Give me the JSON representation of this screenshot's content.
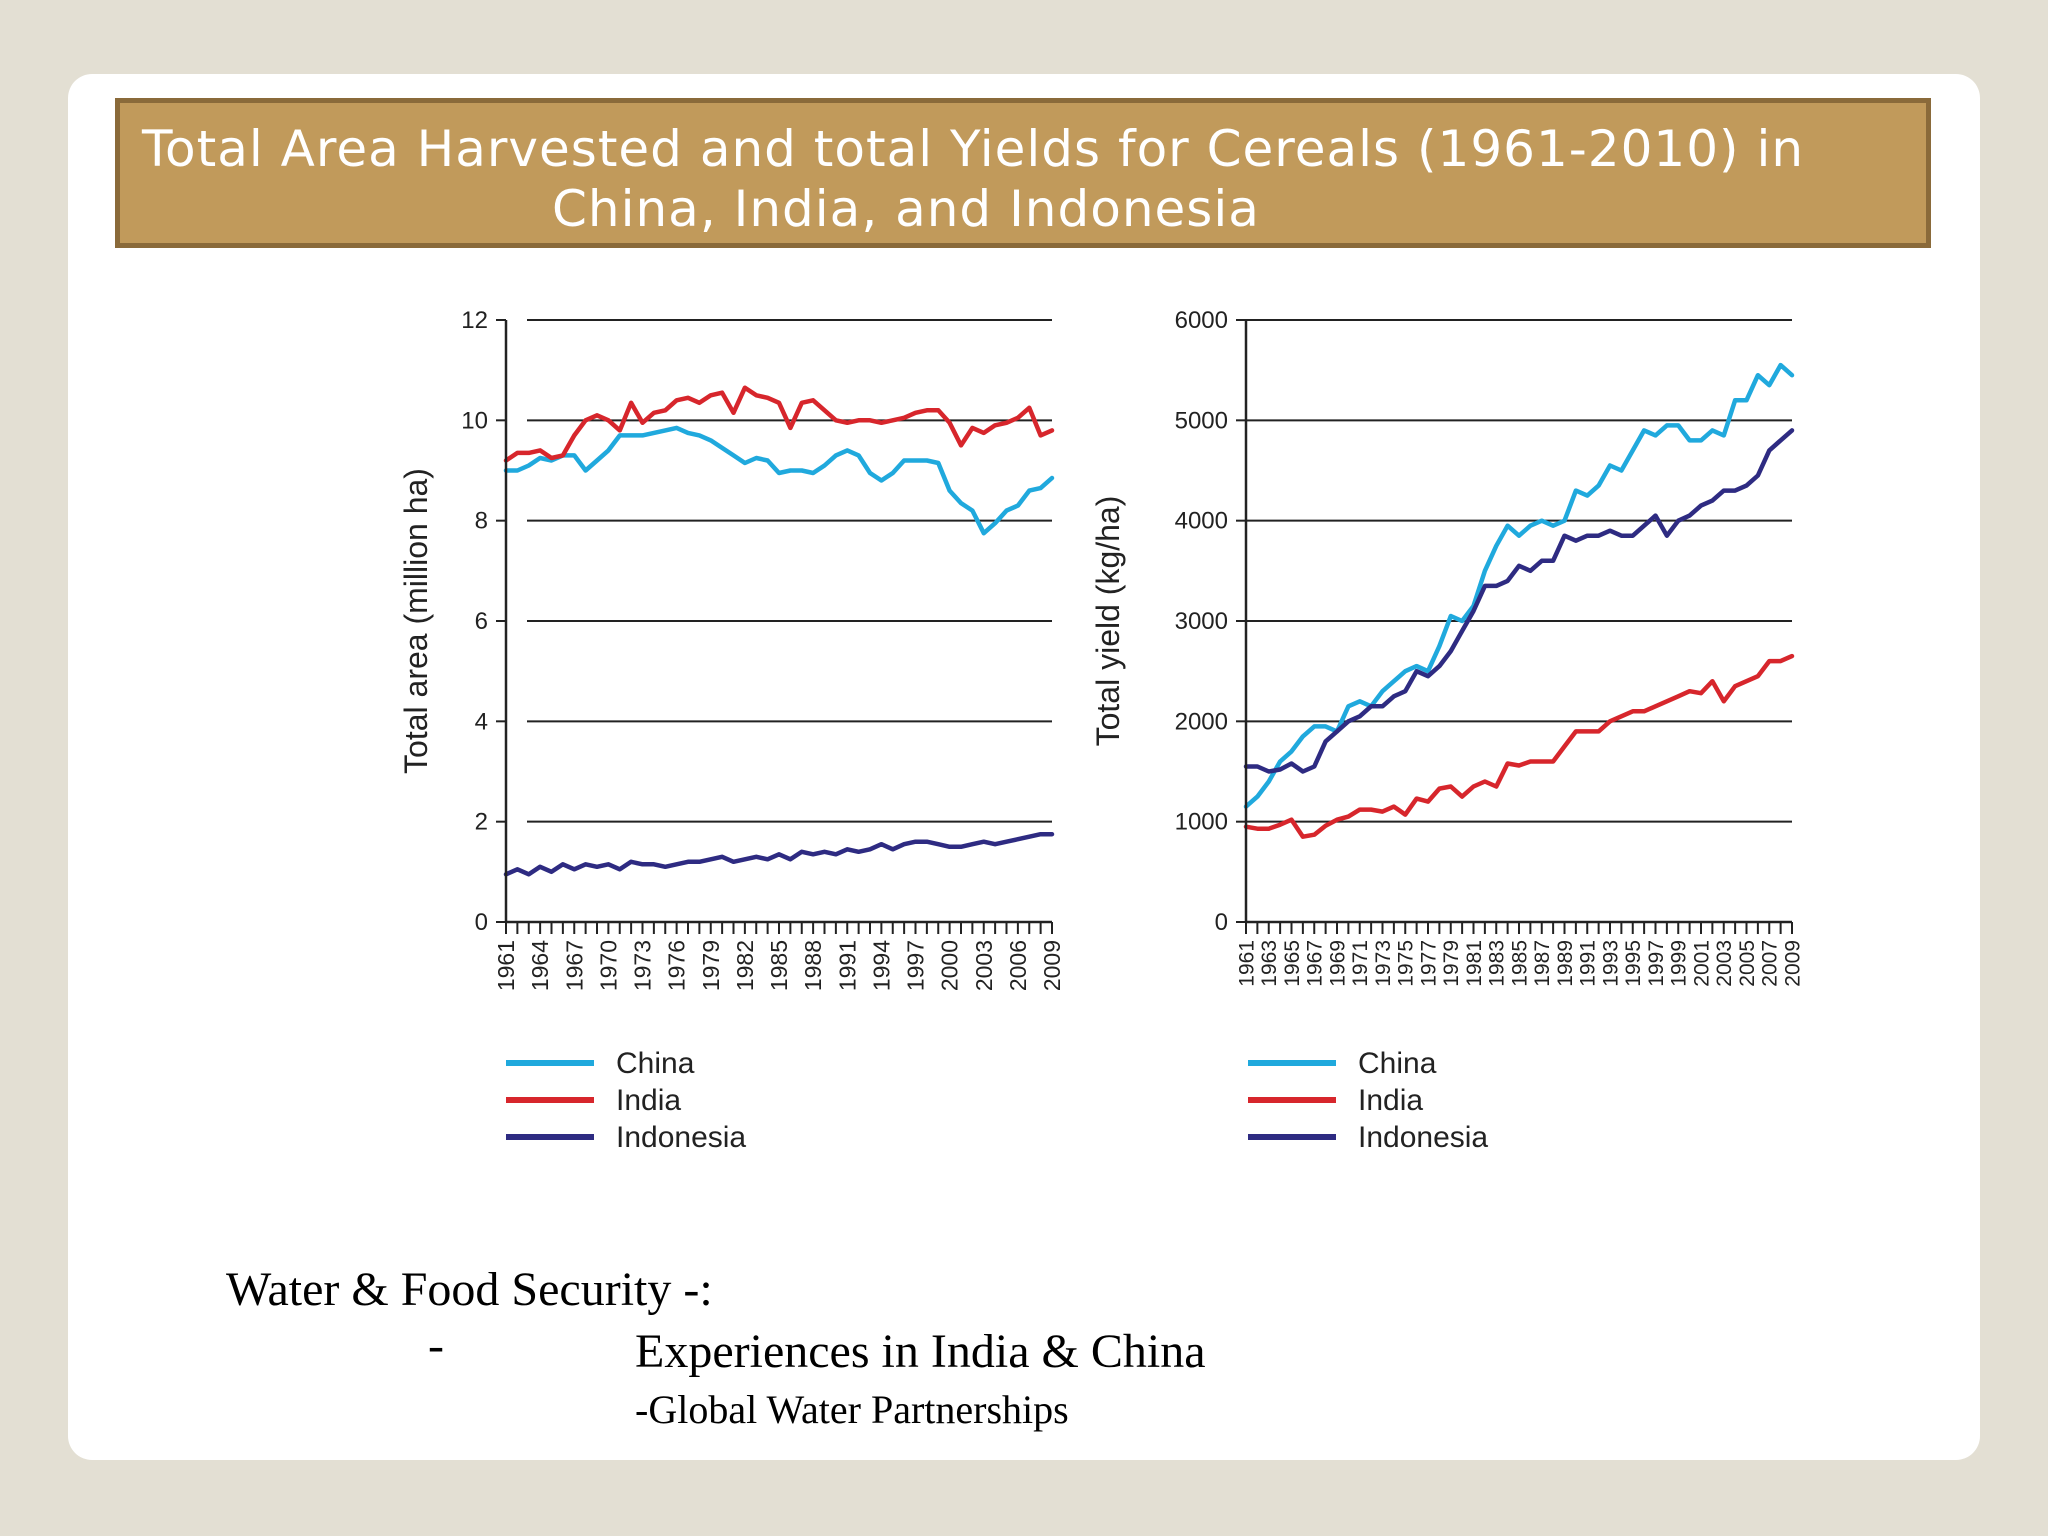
{
  "slide": {
    "title_line1": "Total Area Harvested and total Yields for Cereals (1961-2010) in",
    "title_line2": "China, India, and Indonesia",
    "caption_line1": "Water & Food Security -:",
    "caption_dash": "-",
    "caption_line2": "Experiences in India & China",
    "caption_line3": "-Global Water Partnerships"
  },
  "chart_data": [
    {
      "type": "line",
      "title": "",
      "ylabel": "Total area (million ha)",
      "xlabel": "",
      "ylim": [
        0,
        12
      ],
      "yticks": [
        0,
        2,
        4,
        6,
        8,
        10,
        12
      ],
      "ytick_labels": [
        "0",
        "2",
        "4",
        "6",
        "8",
        "10",
        "12"
      ],
      "xlim": [
        1961,
        2009
      ],
      "xtick_labels": [
        "1961",
        "1964",
        "1967",
        "1970",
        "1973",
        "1976",
        "1979",
        "1982",
        "1985",
        "1988",
        "1991",
        "1994",
        "1997",
        "2000",
        "2003",
        "2006",
        "2009"
      ],
      "grid": "horizontal",
      "legend": "bottom-left",
      "series": [
        {
          "name": "China",
          "color": "#20a9dd",
          "x": [
            1961,
            1962,
            1963,
            1964,
            1965,
            1966,
            1967,
            1968,
            1969,
            1970,
            1971,
            1972,
            1973,
            1974,
            1975,
            1976,
            1977,
            1978,
            1979,
            1980,
            1981,
            1982,
            1983,
            1984,
            1985,
            1986,
            1987,
            1988,
            1989,
            1990,
            1991,
            1992,
            1993,
            1994,
            1995,
            1996,
            1997,
            1998,
            1999,
            2000,
            2001,
            2002,
            2003,
            2004,
            2005,
            2006,
            2007,
            2008,
            2009
          ],
          "values": [
            9.0,
            9.0,
            9.1,
            9.25,
            9.2,
            9.3,
            9.3,
            9.0,
            9.2,
            9.4,
            9.7,
            9.7,
            9.7,
            9.75,
            9.8,
            9.85,
            9.75,
            9.7,
            9.6,
            9.45,
            9.3,
            9.15,
            9.25,
            9.2,
            8.95,
            9.0,
            9.0,
            8.95,
            9.1,
            9.3,
            9.4,
            9.3,
            8.95,
            8.8,
            8.95,
            9.2,
            9.2,
            9.2,
            9.15,
            8.6,
            8.35,
            8.2,
            7.75,
            7.95,
            8.2,
            8.3,
            8.6,
            8.65,
            8.85
          ]
        },
        {
          "name": "India",
          "color": "#d7262c",
          "x": [
            1961,
            1962,
            1963,
            1964,
            1965,
            1966,
            1967,
            1968,
            1969,
            1970,
            1971,
            1972,
            1973,
            1974,
            1975,
            1976,
            1977,
            1978,
            1979,
            1980,
            1981,
            1982,
            1983,
            1984,
            1985,
            1986,
            1987,
            1988,
            1989,
            1990,
            1991,
            1992,
            1993,
            1994,
            1995,
            1996,
            1997,
            1998,
            1999,
            2000,
            2001,
            2002,
            2003,
            2004,
            2005,
            2006,
            2007,
            2008,
            2009
          ],
          "values": [
            9.2,
            9.35,
            9.35,
            9.4,
            9.25,
            9.3,
            9.7,
            10.0,
            10.1,
            10.0,
            9.8,
            10.35,
            9.95,
            10.15,
            10.2,
            10.4,
            10.45,
            10.35,
            10.5,
            10.55,
            10.15,
            10.65,
            10.5,
            10.45,
            10.35,
            9.85,
            10.35,
            10.4,
            10.2,
            10.0,
            9.95,
            10.0,
            10.0,
            9.95,
            10.0,
            10.05,
            10.15,
            10.2,
            10.2,
            9.95,
            9.5,
            9.85,
            9.75,
            9.9,
            9.95,
            10.05,
            10.25,
            9.7,
            9.8
          ]
        },
        {
          "name": "Indonesia",
          "color": "#2e2b82",
          "x": [
            1961,
            1962,
            1963,
            1964,
            1965,
            1966,
            1967,
            1968,
            1969,
            1970,
            1971,
            1972,
            1973,
            1974,
            1975,
            1976,
            1977,
            1978,
            1979,
            1980,
            1981,
            1982,
            1983,
            1984,
            1985,
            1986,
            1987,
            1988,
            1989,
            1990,
            1991,
            1992,
            1993,
            1994,
            1995,
            1996,
            1997,
            1998,
            1999,
            2000,
            2001,
            2002,
            2003,
            2004,
            2005,
            2006,
            2007,
            2008,
            2009
          ],
          "values": [
            0.95,
            1.05,
            0.95,
            1.1,
            1.0,
            1.15,
            1.05,
            1.15,
            1.1,
            1.15,
            1.05,
            1.2,
            1.15,
            1.15,
            1.1,
            1.15,
            1.2,
            1.2,
            1.25,
            1.3,
            1.2,
            1.25,
            1.3,
            1.25,
            1.35,
            1.25,
            1.4,
            1.35,
            1.4,
            1.35,
            1.45,
            1.4,
            1.45,
            1.55,
            1.45,
            1.55,
            1.6,
            1.6,
            1.55,
            1.5,
            1.5,
            1.55,
            1.6,
            1.55,
            1.6,
            1.65,
            1.7,
            1.75,
            1.75
          ]
        }
      ]
    },
    {
      "type": "line",
      "title": "",
      "ylabel": "Total yield (kg/ha)",
      "xlabel": "",
      "ylim": [
        0,
        6000
      ],
      "yticks": [
        0,
        1000,
        2000,
        3000,
        4000,
        5000,
        6000
      ],
      "ytick_labels": [
        "0",
        "1000",
        "2000",
        "3000",
        "4000",
        "5000",
        "6000"
      ],
      "xlim": [
        1961,
        2009
      ],
      "xtick_labels": [
        "1961",
        "1963",
        "1965",
        "1967",
        "1969",
        "1971",
        "1973",
        "1975",
        "1977",
        "1979",
        "1981",
        "1983",
        "1985",
        "1987",
        "1989",
        "1991",
        "1993",
        "1995",
        "1997",
        "1999",
        "2001",
        "2003",
        "2005",
        "2007",
        "2009"
      ],
      "grid": "horizontal",
      "legend": "bottom-left",
      "series": [
        {
          "name": "China",
          "color": "#20a9dd",
          "x": [
            1961,
            1962,
            1963,
            1964,
            1965,
            1966,
            1967,
            1968,
            1969,
            1970,
            1971,
            1972,
            1973,
            1974,
            1975,
            1976,
            1977,
            1978,
            1979,
            1980,
            1981,
            1982,
            1983,
            1984,
            1985,
            1986,
            1987,
            1988,
            1989,
            1990,
            1991,
            1992,
            1993,
            1994,
            1995,
            1996,
            1997,
            1998,
            1999,
            2000,
            2001,
            2002,
            2003,
            2004,
            2005,
            2006,
            2007,
            2008,
            2009
          ],
          "values": [
            1150,
            1250,
            1400,
            1600,
            1700,
            1850,
            1950,
            1950,
            1900,
            2150,
            2200,
            2150,
            2300,
            2400,
            2500,
            2550,
            2500,
            2750,
            3050,
            3000,
            3150,
            3500,
            3750,
            3950,
            3850,
            3950,
            4000,
            3950,
            4000,
            4300,
            4250,
            4350,
            4550,
            4500,
            4700,
            4900,
            4850,
            4950,
            4950,
            4800,
            4800,
            4900,
            4850,
            5200,
            5200,
            5450,
            5350,
            5550,
            5450
          ]
        },
        {
          "name": "India",
          "color": "#d7262c",
          "x": [
            1961,
            1962,
            1963,
            1964,
            1965,
            1966,
            1967,
            1968,
            1969,
            1970,
            1971,
            1972,
            1973,
            1974,
            1975,
            1976,
            1977,
            1978,
            1979,
            1980,
            1981,
            1982,
            1983,
            1984,
            1985,
            1986,
            1987,
            1988,
            1989,
            1990,
            1991,
            1992,
            1993,
            1994,
            1995,
            1996,
            1997,
            1998,
            1999,
            2000,
            2001,
            2002,
            2003,
            2004,
            2005,
            2006,
            2007,
            2008,
            2009
          ],
          "values": [
            950,
            930,
            930,
            970,
            1020,
            850,
            870,
            960,
            1020,
            1050,
            1120,
            1120,
            1100,
            1150,
            1070,
            1230,
            1200,
            1330,
            1350,
            1250,
            1350,
            1400,
            1350,
            1580,
            1560,
            1600,
            1600,
            1600,
            1750,
            1900,
            1900,
            1900,
            2000,
            2050,
            2100,
            2100,
            2150,
            2200,
            2250,
            2300,
            2280,
            2400,
            2200,
            2350,
            2400,
            2450,
            2600,
            2600,
            2650
          ]
        },
        {
          "name": "Indonesia",
          "color": "#2e2b82",
          "x": [
            1961,
            1962,
            1963,
            1964,
            1965,
            1966,
            1967,
            1968,
            1969,
            1970,
            1971,
            1972,
            1973,
            1974,
            1975,
            1976,
            1977,
            1978,
            1979,
            1980,
            1981,
            1982,
            1983,
            1984,
            1985,
            1986,
            1987,
            1988,
            1989,
            1990,
            1991,
            1992,
            1993,
            1994,
            1995,
            1996,
            1997,
            1998,
            1999,
            2000,
            2001,
            2002,
            2003,
            2004,
            2005,
            2006,
            2007,
            2008,
            2009
          ],
          "values": [
            1550,
            1550,
            1500,
            1520,
            1580,
            1500,
            1550,
            1800,
            1900,
            2000,
            2050,
            2150,
            2150,
            2250,
            2300,
            2500,
            2450,
            2550,
            2700,
            2900,
            3100,
            3350,
            3350,
            3400,
            3550,
            3500,
            3600,
            3600,
            3850,
            3800,
            3850,
            3850,
            3900,
            3850,
            3850,
            3950,
            4050,
            3850,
            4000,
            4050,
            4150,
            4200,
            4300,
            4300,
            4350,
            4450,
            4700,
            4800,
            4900
          ]
        }
      ]
    }
  ]
}
